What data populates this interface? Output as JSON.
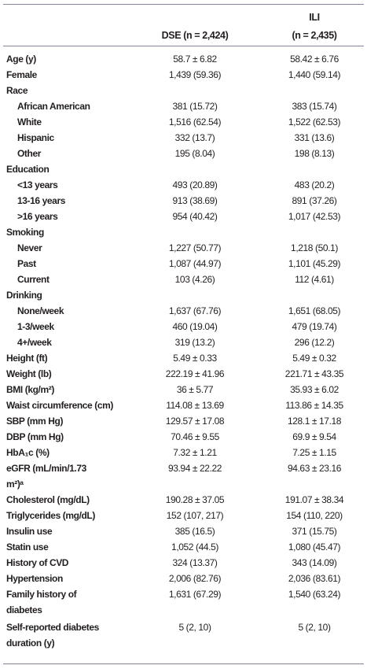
{
  "header": {
    "dse": "DSE (n = 2,424)",
    "ili": [
      "ILI",
      "(n = 2,435)"
    ]
  },
  "rows": [
    {
      "label": "Age (y)",
      "dse": "58.7 ± 6.82",
      "ili": "58.42 ± 6.76"
    },
    {
      "label": "Female",
      "dse": "1,439 (59.36)",
      "ili": "1,440 (59.14)"
    },
    {
      "label": "Race",
      "items": [
        {
          "label": "African American",
          "dse": "381 (15.72)",
          "ili": "383 (15.74)"
        },
        {
          "label": "White",
          "dse": "1,516 (62.54)",
          "ili": "1,522 (62.53)"
        },
        {
          "label": "Hispanic",
          "dse": "332 (13.7)",
          "ili": "331 (13.6)"
        },
        {
          "label": "Other",
          "dse": "195 (8.04)",
          "ili": "198 (8.13)"
        }
      ]
    },
    {
      "label": "Education",
      "items": [
        {
          "label": "<13 years",
          "dse": "493 (20.89)",
          "ili": "483 (20.2)"
        },
        {
          "label": "13-16 years",
          "dse": "913 (38.69)",
          "ili": "891 (37.26)"
        },
        {
          "label": ">16 years",
          "dse": "954 (40.42)",
          "ili": "1,017 (42.53)"
        }
      ]
    },
    {
      "label": "Smoking",
      "items": [
        {
          "label": "Never",
          "dse": "1,227 (50.77)",
          "ili": "1,218 (50.1)"
        },
        {
          "label": "Past",
          "dse": "1,087 (44.97)",
          "ili": "1,101 (45.29)"
        },
        {
          "label": "Current",
          "dse": "103 (4.26)",
          "ili": "112 (4.61)"
        }
      ]
    },
    {
      "label": "Drinking",
      "items": [
        {
          "label": "None/week",
          "dse": "1,637 (67.76)",
          "ili": "1,651 (68.05)"
        },
        {
          "label": "1-3/week",
          "dse": "460 (19.04)",
          "ili": "479 (19.74)"
        },
        {
          "label": "4+/week",
          "dse": "319 (13.2)",
          "ili": "296 (12.2)"
        }
      ]
    },
    {
      "label": "Height (ft)",
      "dse": "5.49 ± 0.33",
      "ili": "5.49 ± 0.32"
    },
    {
      "label": "Weight (lb)",
      "dse": "222.19 ± 41.96",
      "ili": "221.71 ± 43.35"
    },
    {
      "label": "BMI (kg/m²)",
      "dse": "36 ± 5.77",
      "ili": "35.93 ± 6.02"
    },
    {
      "label": "Waist circumference (cm)",
      "dse": "114.08 ± 13.69",
      "ili": "113.86 ± 14.35"
    },
    {
      "label": "SBP (mm Hg)",
      "dse": "129.57 ± 17.08",
      "ili": "128.1 ± 17.18"
    },
    {
      "label": "DBP (mm Hg)",
      "dse": "70.46 ± 9.55",
      "ili": "69.9 ± 9.54"
    },
    {
      "label": "HbA₁c (%)",
      "dse": "7.32 ± 1.21",
      "ili": "7.25 ± 1.15"
    },
    {
      "label": [
        "eGFR (mL/min/1.73",
        "m²)ᵃ"
      ],
      "dse": "93.94 ± 22.22",
      "ili": "94.63 ± 23.16"
    },
    {
      "label": "Cholesterol (mg/dL)",
      "dse": "190.28 ± 37.05",
      "ili": "191.07 ± 38.34"
    },
    {
      "label": "Triglycerides (mg/dL)",
      "dse": "152 (107, 217)",
      "ili": "154 (110, 220)"
    },
    {
      "label": "Insulin use",
      "dse": "385 (16.5)",
      "ili": "371 (15.75)"
    },
    {
      "label": "Statin use",
      "dse": "1,052 (44.5)",
      "ili": "1,080 (45.47)"
    },
    {
      "label": "History of CVD",
      "dse": "324 (13.37)",
      "ili": "343 (14.09)"
    },
    {
      "label": "Hypertension",
      "dse": "2,006 (82.76)",
      "ili": "2,036 (83.61)"
    },
    {
      "label": [
        "Family history of",
        "diabetes"
      ],
      "dse": "1,631 (67.29)",
      "ili": "1,540 (63.24)"
    },
    {
      "label": [
        "Self-reported diabetes",
        "duration (y)"
      ],
      "dse": "5 (2, 10)",
      "ili": "5 (2, 10)"
    }
  ]
}
